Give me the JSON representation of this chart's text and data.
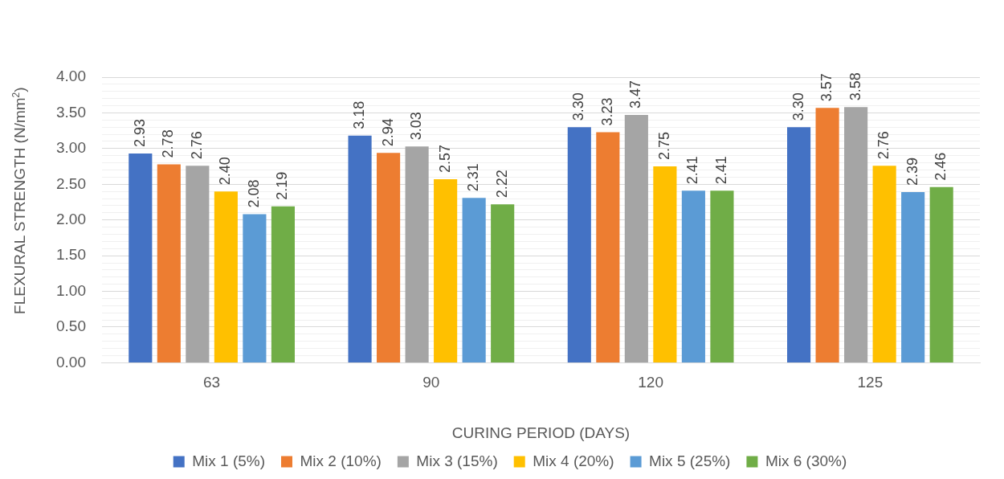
{
  "chart_data": {
    "type": "bar",
    "xlabel": "CURING PERIOD (DAYS)",
    "ylabel": "FLEXURAL STRENGTH (N/mm$^{2}$)",
    "categories": [
      "63",
      "90",
      "120",
      "125"
    ],
    "series": [
      {
        "name": "Mix 1 (5%)",
        "color": "#4472c4",
        "values": [
          2.93,
          3.18,
          3.3,
          3.3
        ],
        "value_labels": [
          "2.93",
          "3.18",
          "3.30",
          "3.30"
        ]
      },
      {
        "name": "Mix 2 (10%)",
        "color": "#ed7d31",
        "values": [
          2.78,
          2.94,
          3.23,
          3.57
        ],
        "value_labels": [
          "2.78",
          "2.94",
          "3.23",
          "3.57"
        ]
      },
      {
        "name": "Mix 3 (15%)",
        "color": "#a5a5a5",
        "values": [
          2.76,
          3.03,
          3.47,
          3.58
        ],
        "value_labels": [
          "2.76",
          "3.03",
          "3.47",
          "3.58"
        ]
      },
      {
        "name": "Mix 4 (20%)",
        "color": "#ffc000",
        "values": [
          2.4,
          2.57,
          2.75,
          2.76
        ],
        "value_labels": [
          "2.40",
          "2.57",
          "2.75",
          "2.76"
        ]
      },
      {
        "name": "Mix 5 (25%)",
        "color": "#5b9bd5",
        "values": [
          2.08,
          2.31,
          2.41,
          2.39
        ],
        "value_labels": [
          "2.08",
          "2.31",
          "2.41",
          "2.39"
        ]
      },
      {
        "name": "Mix 6 (30%)",
        "color": "#70ad47",
        "values": [
          2.19,
          2.22,
          2.41,
          2.46
        ],
        "value_labels": [
          "2.19",
          "2.22",
          "2.41",
          "2.46"
        ]
      }
    ],
    "ylim": [
      0,
      4
    ],
    "yticks": [
      {
        "value": 0,
        "label": "0.00"
      },
      {
        "value": 0.1,
        "label": null
      },
      {
        "value": 0.2,
        "label": null
      },
      {
        "value": 0.3,
        "label": null
      },
      {
        "value": 0.4,
        "label": null
      },
      {
        "value": 0.5,
        "label": "0.50"
      },
      {
        "value": 0.6,
        "label": null
      },
      {
        "value": 0.7,
        "label": null
      },
      {
        "value": 0.8,
        "label": null
      },
      {
        "value": 0.9,
        "label": null
      },
      {
        "value": 1,
        "label": "1.00"
      },
      {
        "value": 1.1,
        "label": null
      },
      {
        "value": 1.2,
        "label": null
      },
      {
        "value": 1.3,
        "label": null
      },
      {
        "value": 1.4,
        "label": null
      },
      {
        "value": 1.5,
        "label": "1.50"
      },
      {
        "value": 1.6,
        "label": null
      },
      {
        "value": 1.7,
        "label": null
      },
      {
        "value": 1.8,
        "label": null
      },
      {
        "value": 1.9,
        "label": null
      },
      {
        "value": 2,
        "label": "2.00"
      },
      {
        "value": 2.1,
        "label": null
      },
      {
        "value": 2.2,
        "label": null
      },
      {
        "value": 2.3,
        "label": null
      },
      {
        "value": 2.4,
        "label": null
      },
      {
        "value": 2.5,
        "label": "2.50"
      },
      {
        "value": 2.6,
        "label": null
      },
      {
        "value": 2.7,
        "label": null
      },
      {
        "value": 2.8,
        "label": null
      },
      {
        "value": 2.9,
        "label": null
      },
      {
        "value": 3,
        "label": "3.00"
      },
      {
        "value": 3.1,
        "label": null
      },
      {
        "value": 3.2,
        "label": null
      },
      {
        "value": 3.3,
        "label": null
      },
      {
        "value": 3.4,
        "label": null
      },
      {
        "value": 3.5,
        "label": "3.50"
      },
      {
        "value": 3.6,
        "label": null
      },
      {
        "value": 3.7,
        "label": null
      },
      {
        "value": 3.8,
        "label": null
      },
      {
        "value": 3.9,
        "label": null
      },
      {
        "value": 4,
        "label": "4.00"
      }
    ],
    "grid": "y",
    "legend": "bottom"
  }
}
